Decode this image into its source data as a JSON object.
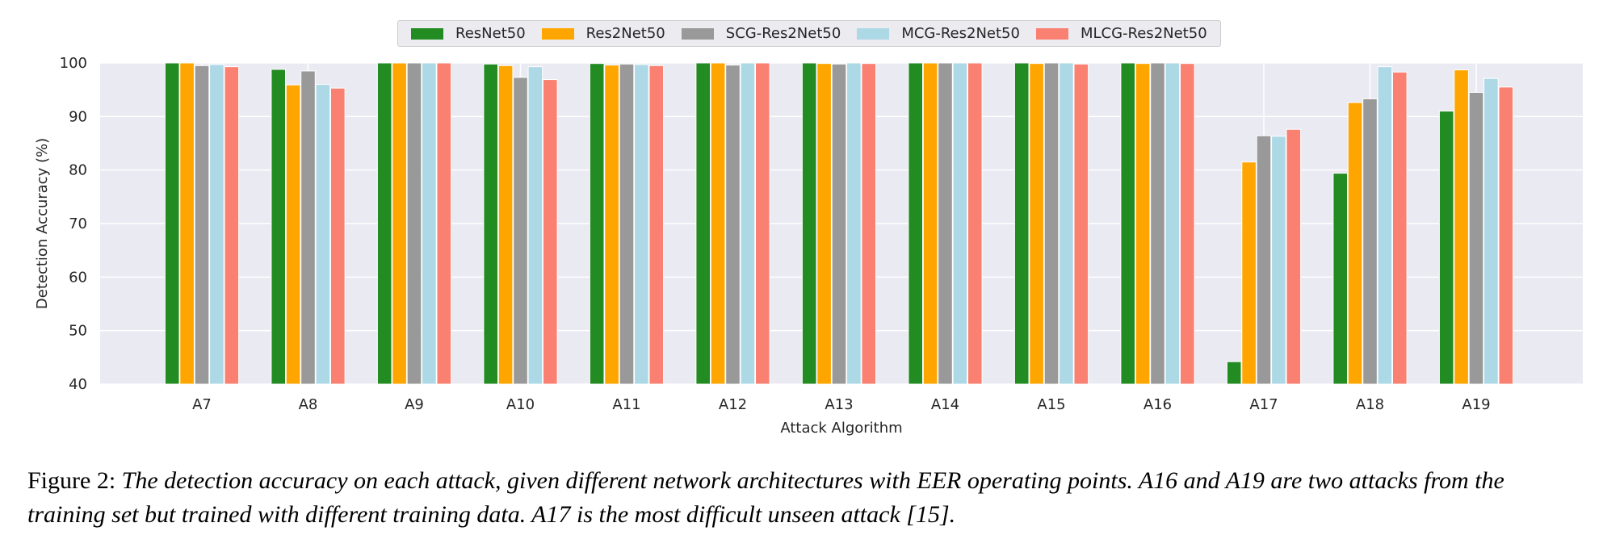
{
  "chart_data": {
    "type": "bar",
    "categories": [
      "A7",
      "A8",
      "A9",
      "A10",
      "A11",
      "A12",
      "A13",
      "A14",
      "A15",
      "A16",
      "A17",
      "A18",
      "A19"
    ],
    "series": [
      {
        "name": "ResNet50",
        "color": "#228b22",
        "values": [
          100,
          98.8,
          100,
          99.8,
          99.9,
          100,
          100,
          100,
          100,
          100,
          44.2,
          79.4,
          91.0
        ]
      },
      {
        "name": "Res2Net50",
        "color": "#ffa500",
        "values": [
          100,
          95.9,
          100,
          99.5,
          99.6,
          100,
          99.9,
          100,
          99.9,
          99.9,
          81.5,
          92.6,
          98.7
        ]
      },
      {
        "name": "SCG-Res2Net50",
        "color": "#999999",
        "values": [
          99.5,
          98.5,
          100,
          97.3,
          99.8,
          99.6,
          99.8,
          100,
          100,
          100,
          86.4,
          93.3,
          94.5
        ]
      },
      {
        "name": "MCG-Res2Net50",
        "color": "#add8e6",
        "values": [
          99.7,
          96.0,
          100,
          99.3,
          99.7,
          100,
          100,
          100,
          100,
          100,
          86.3,
          99.3,
          97.1
        ]
      },
      {
        "name": "MLCG-Res2Net50",
        "color": "#fa8072",
        "values": [
          99.3,
          95.3,
          100,
          96.9,
          99.5,
          100,
          99.9,
          100,
          99.8,
          99.9,
          87.6,
          98.3,
          95.5
        ]
      }
    ],
    "xlabel": "Attack Algorithm",
    "ylabel": "Detection Accuracy (%)",
    "ylim": [
      40,
      100
    ],
    "yticks": [
      40,
      50,
      60,
      70,
      80,
      90,
      100
    ],
    "grid": true,
    "legend_position": "top-center"
  },
  "caption": {
    "label": "Figure 2:",
    "text": "The detection accuracy on each attack, given different network architectures with EER operating points. A16 and A19 are two attacks from the training set but trained with different training data. A17 is the most difficult unseen attack [15]."
  }
}
